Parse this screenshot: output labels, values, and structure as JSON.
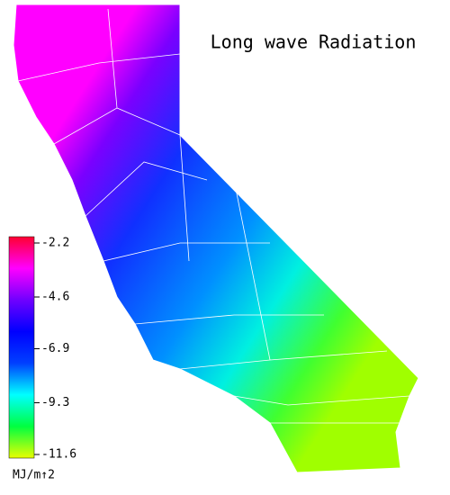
{
  "title": "Long wave Radiation",
  "colorbar": {
    "label": "MJ/m↑2",
    "range": [
      -2.2,
      -11.6
    ],
    "ticks": [
      -2.2,
      -4.6,
      -6.9,
      -9.3,
      -11.6
    ],
    "colors": [
      "#ff0030",
      "#ff00ff",
      "#7000ff",
      "#0000ff",
      "#0040ff",
      "#00ffff",
      "#00ff40",
      "#e8ff00"
    ]
  }
}
